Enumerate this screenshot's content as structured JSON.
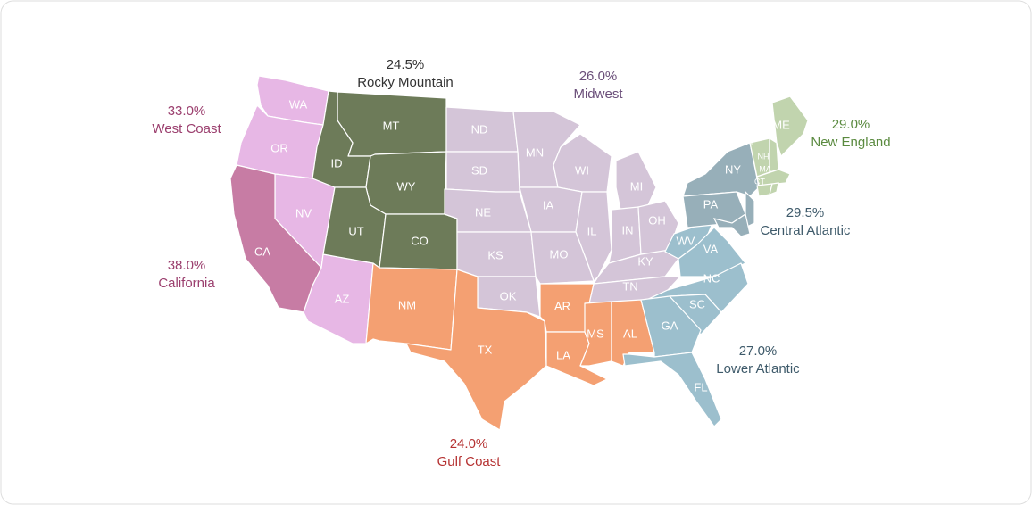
{
  "regions": [
    {
      "name": "West Coast",
      "share": "33.0%",
      "color": "#e7b7e5",
      "label_color": "#9b3f6e",
      "states": [
        "WA",
        "OR",
        "NV",
        "AZ"
      ]
    },
    {
      "name": "California",
      "share": "38.0%",
      "color": "#c77ca4",
      "label_color": "#9b3f6e",
      "states": [
        "CA"
      ]
    },
    {
      "name": "Rocky Mountain",
      "share": "24.5%",
      "color": "#6d7b59",
      "label_color": "#333333",
      "states": [
        "MT",
        "ID",
        "WY",
        "UT",
        "CO"
      ]
    },
    {
      "name": "Midwest",
      "share": "26.0%",
      "color": "#d4c5d8",
      "label_color": "#6b4f7a",
      "states": [
        "ND",
        "MN",
        "WI",
        "MI",
        "SD",
        "IA",
        "NE",
        "IL",
        "IN",
        "OH",
        "KS",
        "MO",
        "KY",
        "OK",
        "TN"
      ]
    },
    {
      "name": "Gulf Coast",
      "share": "24.0%",
      "color": "#f4a072",
      "label_color": "#b53131",
      "states": [
        "NM",
        "TX",
        "AR",
        "LA",
        "MS",
        "AL"
      ]
    },
    {
      "name": "Lower Atlantic",
      "share": "27.0%",
      "color": "#9cbfcd",
      "label_color": "#3e5a6a",
      "states": [
        "WV",
        "VA",
        "NC",
        "SC",
        "GA",
        "FL"
      ]
    },
    {
      "name": "Central Atlantic",
      "share": "29.5%",
      "color": "#97afb9",
      "label_color": "#3e5a6a",
      "states": [
        "NY",
        "PA"
      ]
    },
    {
      "name": "New England",
      "share": "29.0%",
      "color": "#c1d4ae",
      "label_color": "#5a8a3f",
      "states": [
        "ME",
        "VT",
        "NH",
        "MA",
        "CT"
      ]
    }
  ]
}
